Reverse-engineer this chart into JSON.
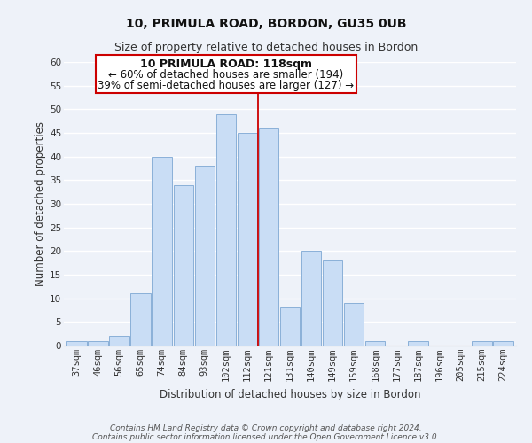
{
  "title_line1": "10, PRIMULA ROAD, BORDON, GU35 0UB",
  "title_line2": "Size of property relative to detached houses in Bordon",
  "xlabel": "Distribution of detached houses by size in Bordon",
  "ylabel": "Number of detached properties",
  "categories": [
    "37sqm",
    "46sqm",
    "56sqm",
    "65sqm",
    "74sqm",
    "84sqm",
    "93sqm",
    "102sqm",
    "112sqm",
    "121sqm",
    "131sqm",
    "140sqm",
    "149sqm",
    "159sqm",
    "168sqm",
    "177sqm",
    "187sqm",
    "196sqm",
    "205sqm",
    "215sqm",
    "224sqm"
  ],
  "values": [
    1,
    1,
    2,
    11,
    40,
    34,
    38,
    49,
    45,
    46,
    8,
    20,
    18,
    9,
    1,
    0,
    1,
    0,
    0,
    1,
    1
  ],
  "bar_color": "#c9ddf5",
  "bar_edge_color": "#8ab0d8",
  "annotation_title": "10 PRIMULA ROAD: 118sqm",
  "annotation_line1": "← 60% of detached houses are smaller (194)",
  "annotation_line2": "39% of semi-detached houses are larger (127) →",
  "annotation_box_color": "#ffffff",
  "annotation_box_edge_color": "#cc0000",
  "red_line_x": 8.5,
  "ylim": [
    0,
    60
  ],
  "yticks": [
    0,
    5,
    10,
    15,
    20,
    25,
    30,
    35,
    40,
    45,
    50,
    55,
    60
  ],
  "footer_line1": "Contains HM Land Registry data © Crown copyright and database right 2024.",
  "footer_line2": "Contains public sector information licensed under the Open Government Licence v3.0.",
  "background_color": "#eef2f9",
  "grid_color": "#ffffff",
  "title_fontsize": 10,
  "subtitle_fontsize": 9,
  "axis_label_fontsize": 8.5,
  "tick_fontsize": 7.5,
  "annotation_title_fontsize": 9,
  "annotation_text_fontsize": 8.5,
  "footer_fontsize": 6.5
}
